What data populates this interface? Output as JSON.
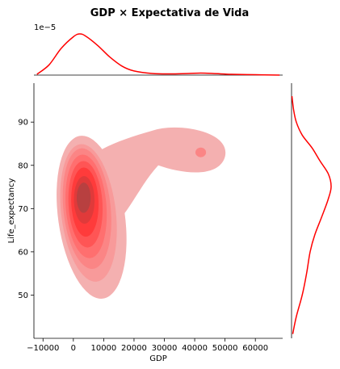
{
  "chart_data": {
    "type": "kde-joint",
    "title": "GDP × Expectativa de Vida",
    "xlabel": "GDP",
    "ylabel": "Life_expectancy",
    "xlim": [
      -13000,
      69000
    ],
    "ylim": [
      40,
      99
    ],
    "xticks": [
      -10000,
      0,
      10000,
      20000,
      30000,
      40000,
      50000,
      60000
    ],
    "yticks": [
      50,
      60,
      70,
      80,
      90
    ],
    "top_marginal_scale_label": "1e−5",
    "color": "#ff0000",
    "grid": false,
    "legend": "none",
    "joint_levels": [
      {
        "level": 1,
        "center": [
          6000,
          68
        ],
        "spread": [
          11000,
          19
        ]
      },
      {
        "level": 2,
        "center": [
          5000,
          69
        ],
        "spread": [
          9000,
          16
        ]
      },
      {
        "level": 3,
        "center": [
          4500,
          70
        ],
        "spread": [
          7800,
          14
        ]
      },
      {
        "level": 4,
        "center": [
          4200,
          70.5
        ],
        "spread": [
          6700,
          12
        ]
      },
      {
        "level": 5,
        "center": [
          4000,
          71
        ],
        "spread": [
          5600,
          10
        ]
      },
      {
        "level": 6,
        "center": [
          3800,
          71.5
        ],
        "spread": [
          4500,
          8
        ]
      },
      {
        "level": 7,
        "center": [
          3600,
          72
        ],
        "spread": [
          3400,
          5.5
        ]
      },
      {
        "level": 8,
        "center": [
          3400,
          72.5
        ],
        "spread": [
          2300,
          3.5
        ]
      }
    ],
    "secondary_mode": {
      "center": [
        42000,
        83
      ],
      "spread": [
        7000,
        4
      ]
    },
    "marginal_x": {
      "x": [
        -12000,
        -8000,
        -4000,
        0,
        2000,
        4000,
        8000,
        12000,
        16000,
        20000,
        26000,
        32000,
        38000,
        42000,
        46000,
        52000,
        60000,
        68000
      ],
      "density": [
        0.02,
        0.25,
        0.65,
        0.93,
        1.0,
        0.95,
        0.72,
        0.44,
        0.22,
        0.1,
        0.04,
        0.03,
        0.04,
        0.05,
        0.04,
        0.02,
        0.01,
        0.0
      ]
    },
    "marginal_y": {
      "y": [
        41,
        45,
        50,
        55,
        60,
        64,
        68,
        72,
        75,
        78,
        81,
        84,
        87,
        90,
        93,
        96
      ],
      "density": [
        0.03,
        0.12,
        0.27,
        0.38,
        0.47,
        0.59,
        0.76,
        0.92,
        1.0,
        0.93,
        0.72,
        0.52,
        0.27,
        0.12,
        0.05,
        0.01
      ]
    }
  }
}
